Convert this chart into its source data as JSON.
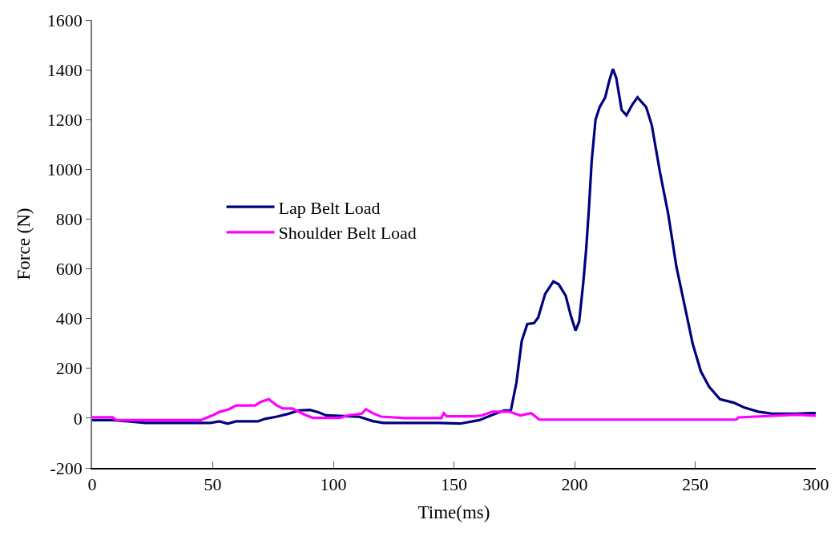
{
  "chart_data": {
    "type": "line",
    "xlabel": "Time(ms)",
    "ylabel": "Force (N)",
    "xlim": [
      0,
      300
    ],
    "xticks": [
      0,
      50,
      100,
      150,
      200,
      250,
      300
    ],
    "ylim": [
      -200,
      1600
    ],
    "yticks": [
      -200,
      0,
      200,
      400,
      600,
      800,
      1000,
      1200,
      1400,
      1600
    ],
    "legend": "left",
    "marker": "none",
    "line_style": "solid",
    "series": [
      {
        "name": "Lap Belt Load",
        "color": "#000080",
        "x": [
          0,
          8,
          15,
          22,
          49,
          52.8,
          56.2,
          59.6,
          68.7,
          71.6,
          76.6,
          81.2,
          85.7,
          90.3,
          93.7,
          97,
          110.5,
          112.9,
          116.3,
          120.8,
          143.5,
          152.6,
          160.5,
          166.2,
          170.8,
          173.6,
          175.9,
          178.1,
          180.4,
          183.2,
          184.9,
          187.8,
          191.2,
          193.4,
          196.3,
          198.5,
          200.4,
          201.9,
          203.6,
          204.8,
          205.9,
          207.1,
          208.7,
          210.4,
          212.7,
          214.4,
          215.9,
          217.3,
          219.5,
          221.5,
          224,
          226.1,
          229.7,
          232,
          235.4,
          238.8,
          242.2,
          245.6,
          249,
          252.4,
          255.8,
          260.3,
          266,
          270.5,
          276.2,
          281.9,
          292,
          297.6,
          300
        ],
        "values": [
          -8,
          -8,
          -13,
          -19,
          -19,
          -13,
          -22,
          -13,
          -13,
          -3,
          6,
          17,
          31,
          33,
          24,
          11,
          6,
          -1,
          -12,
          -19,
          -19,
          -22,
          -8,
          14,
          31,
          31,
          143,
          310,
          378,
          382,
          404,
          499,
          549,
          538,
          493,
          410,
          352,
          387,
          543,
          677,
          833,
          1033,
          1200,
          1250,
          1289,
          1356,
          1403,
          1367,
          1239,
          1217,
          1261,
          1289,
          1250,
          1178,
          989,
          822,
          610,
          454,
          298,
          187,
          126,
          76,
          62,
          42,
          26,
          18,
          18,
          20,
          20
        ]
      },
      {
        "name": "Shoulder Belt Load",
        "color": "#ff00ff",
        "x": [
          0,
          8.5,
          10,
          45,
          50.6,
          52.8,
          56.8,
          59.6,
          67.6,
          69.8,
          73.2,
          76.6,
          79,
          83,
          88,
          91.5,
          102.7,
          106,
          111.8,
          113.5,
          116.3,
          119.7,
          130,
          144.7,
          145.8,
          147,
          158,
          161.6,
          166,
          173,
          177.5,
          182,
          185.4,
          267,
          268,
          292,
          300
        ],
        "values": [
          3,
          3,
          -8,
          -8,
          14,
          25,
          36,
          51,
          51,
          65,
          76,
          51,
          39,
          39,
          14,
          1,
          1,
          11,
          18,
          36,
          20,
          6,
          0,
          0,
          20,
          7,
          7,
          11,
          26,
          26,
          11,
          20,
          -6,
          -6,
          3,
          14,
          10
        ]
      }
    ]
  }
}
